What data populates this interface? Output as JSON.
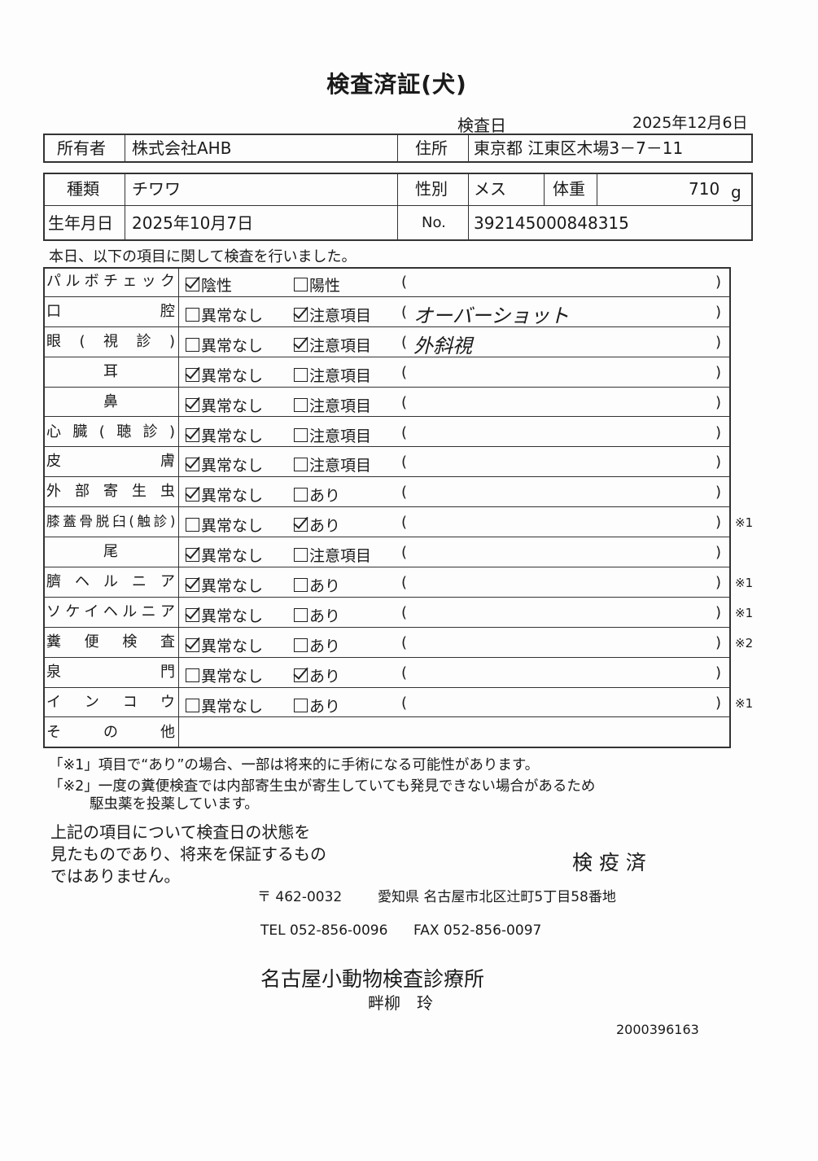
{
  "title": "検査済証(犬)",
  "exam_date_label": "検査日",
  "exam_date": "2025年12月6日",
  "owner": {
    "label": "所有者",
    "value": "株式会社AHB"
  },
  "address": {
    "label": "住所",
    "value": "東京都 江東区木場3－7－11"
  },
  "breed": {
    "label": "種類",
    "value": "チワワ"
  },
  "sex": {
    "label": "性別",
    "value": "メス"
  },
  "weight": {
    "label": "体重",
    "value": "710",
    "unit": "g"
  },
  "birth": {
    "label": "生年月日",
    "value": "2025年10月7日"
  },
  "number": {
    "label": "No.",
    "value": "392145000848315"
  },
  "intro": "本日、以下の項目に関して検査を行いました。",
  "paren_open": "(",
  "paren_close": ")",
  "rows": [
    {
      "label": "パルボチェック",
      "opt1": "陰性",
      "opt1_checked": true,
      "opt2": "陽性",
      "opt2_checked": false,
      "remark": "",
      "note": ""
    },
    {
      "label": "口腔",
      "opt1": "異常なし",
      "opt1_checked": false,
      "opt2": "注意項目",
      "opt2_checked": true,
      "remark": "オーバーショット",
      "note": ""
    },
    {
      "label": "眼(視診)",
      "opt1": "異常なし",
      "opt1_checked": false,
      "opt2": "注意項目",
      "opt2_checked": true,
      "remark": "外斜視",
      "note": ""
    },
    {
      "label": "耳",
      "opt1": "異常なし",
      "opt1_checked": true,
      "opt2": "注意項目",
      "opt2_checked": false,
      "remark": "",
      "note": ""
    },
    {
      "label": "鼻",
      "opt1": "異常なし",
      "opt1_checked": true,
      "opt2": "注意項目",
      "opt2_checked": false,
      "remark": "",
      "note": ""
    },
    {
      "label": "心臓(聴診)",
      "opt1": "異常なし",
      "opt1_checked": true,
      "opt2": "注意項目",
      "opt2_checked": false,
      "remark": "",
      "note": ""
    },
    {
      "label": "皮膚",
      "opt1": "異常なし",
      "opt1_checked": true,
      "opt2": "注意項目",
      "opt2_checked": false,
      "remark": "",
      "note": ""
    },
    {
      "label": "外部寄生虫",
      "opt1": "異常なし",
      "opt1_checked": true,
      "opt2": "あり",
      "opt2_checked": false,
      "remark": "",
      "note": ""
    },
    {
      "label": "膝蓋骨脱臼(触診)",
      "opt1": "異常なし",
      "opt1_checked": false,
      "opt2": "あり",
      "opt2_checked": true,
      "remark": "",
      "note": "※1"
    },
    {
      "label": "尾",
      "opt1": "異常なし",
      "opt1_checked": true,
      "opt2": "注意項目",
      "opt2_checked": false,
      "remark": "",
      "note": ""
    },
    {
      "label": "臍ヘルニア",
      "opt1": "異常なし",
      "opt1_checked": true,
      "opt2": "あり",
      "opt2_checked": false,
      "remark": "",
      "note": "※1"
    },
    {
      "label": "ソケイヘルニア",
      "opt1": "異常なし",
      "opt1_checked": true,
      "opt2": "あり",
      "opt2_checked": false,
      "remark": "",
      "note": "※1"
    },
    {
      "label": "糞便検査",
      "opt1": "異常なし",
      "opt1_checked": true,
      "opt2": "あり",
      "opt2_checked": false,
      "remark": "",
      "note": "※2"
    },
    {
      "label": "泉門",
      "opt1": "異常なし",
      "opt1_checked": false,
      "opt2": "あり",
      "opt2_checked": true,
      "remark": "",
      "note": ""
    },
    {
      "label": "インコウ",
      "opt1": "異常なし",
      "opt1_checked": false,
      "opt2": "あり",
      "opt2_checked": false,
      "remark": "",
      "note": "※1"
    },
    {
      "label": "その他"
    }
  ],
  "footnote1": "「※1」項目で“あり”の場合、一部は将来的に手術になる可能性があります。",
  "footnote2_line1": "「※2」一度の糞便検査では内部寄生虫が寄生していても発見できない場合があるため",
  "footnote2_line2": "駆虫薬を投薬しています。",
  "disclaimer": [
    "上記の項目について検査日の状態を",
    "見たものであり、将来を保証するもの",
    "ではありません。"
  ],
  "stamp": "検 疫 済",
  "postal": "〒 462-0032",
  "clinic_address": "愛知県 名古屋市北区辻町5丁目58番地",
  "tel": "TEL 052-856-0096",
  "fax": "FAX 052-856-0097",
  "clinic_name": "名古屋小動物検査診療所",
  "vet_name": "畔柳　玲",
  "doc_number": "2000396163"
}
